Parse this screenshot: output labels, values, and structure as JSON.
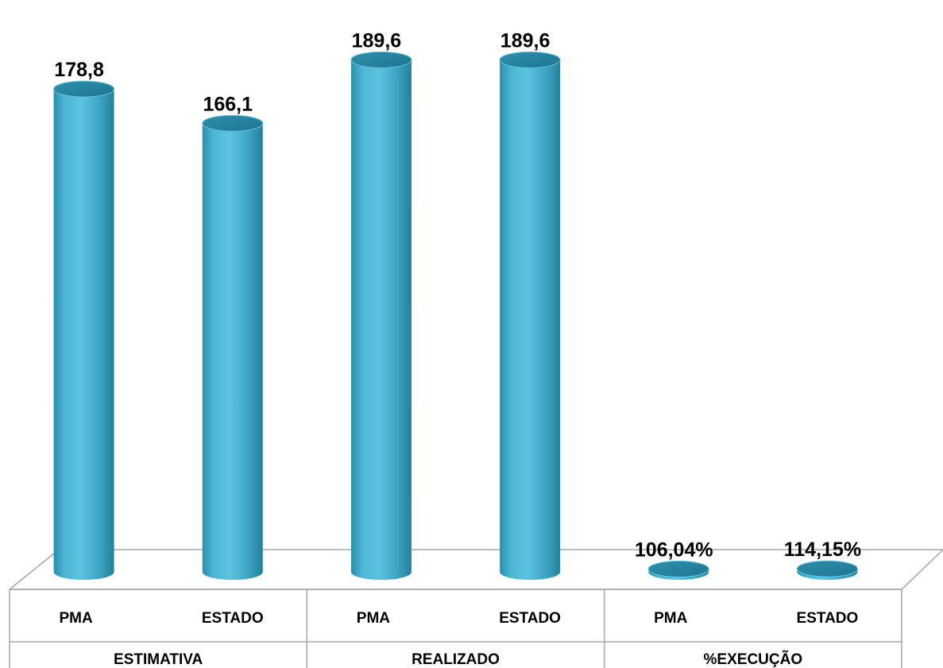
{
  "chart_data": {
    "type": "bar",
    "style": "3d-cylinder",
    "title": "",
    "xlabel": "",
    "ylabel": "",
    "ylim": [
      0,
      200
    ],
    "grid": false,
    "legend": "none",
    "bar_color": "#4bb5d3",
    "groups": [
      {
        "label": "ESTIMATIVA",
        "bars": [
          {
            "category": "PMA",
            "value": 178.8,
            "label": "178,8"
          },
          {
            "category": "ESTADO",
            "value": 166.1,
            "label": "166,1"
          }
        ]
      },
      {
        "label": "REALIZADO",
        "bars": [
          {
            "category": "PMA",
            "value": 189.6,
            "label": "189,6"
          },
          {
            "category": "ESTADO",
            "value": 189.6,
            "label": "189,6"
          }
        ]
      },
      {
        "label": "%EXECUÇÃO",
        "bars": [
          {
            "category": "PMA",
            "value": 1.0604,
            "label": "106,04%"
          },
          {
            "category": "ESTADO",
            "value": 1.1415,
            "label": "114,15%"
          }
        ]
      }
    ]
  }
}
